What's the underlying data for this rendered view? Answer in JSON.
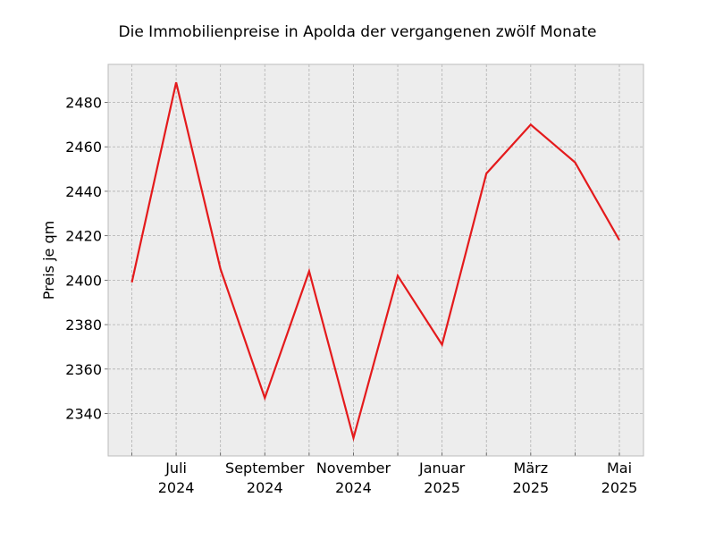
{
  "chart_data": {
    "type": "line",
    "title": "Die Immobilienpreise in Apolda der vergangenen zwölf Monate",
    "xlabel": "",
    "ylabel": "Preis je qm",
    "x": [
      "2024-06",
      "2024-07",
      "2024-08",
      "2024-09",
      "2024-10",
      "2024-11",
      "2024-12",
      "2025-01",
      "2025-02",
      "2025-03",
      "2025-04",
      "2025-05"
    ],
    "x_tick_labels": [
      {
        "x": "2024-07",
        "lines": [
          "Juli",
          "2024"
        ]
      },
      {
        "x": "2024-09",
        "lines": [
          "September",
          "2024"
        ]
      },
      {
        "x": "2024-11",
        "lines": [
          "November",
          "2024"
        ]
      },
      {
        "x": "2025-01",
        "lines": [
          "Januar",
          "2025"
        ]
      },
      {
        "x": "2025-03",
        "lines": [
          "März",
          "2025"
        ]
      },
      {
        "x": "2025-05",
        "lines": [
          "Mai",
          "2025"
        ]
      }
    ],
    "series": [
      {
        "values": [
          2399,
          2489,
          2405,
          2347,
          2404,
          2329,
          2402,
          2371,
          2448,
          2470,
          2453,
          2418
        ],
        "color": "#e41a1c"
      }
    ],
    "ylim": [
      2320.9,
      2497.1
    ],
    "yticks": [
      2340,
      2360,
      2380,
      2400,
      2420,
      2440,
      2460,
      2480
    ],
    "grid": true,
    "background": "#ededed"
  }
}
